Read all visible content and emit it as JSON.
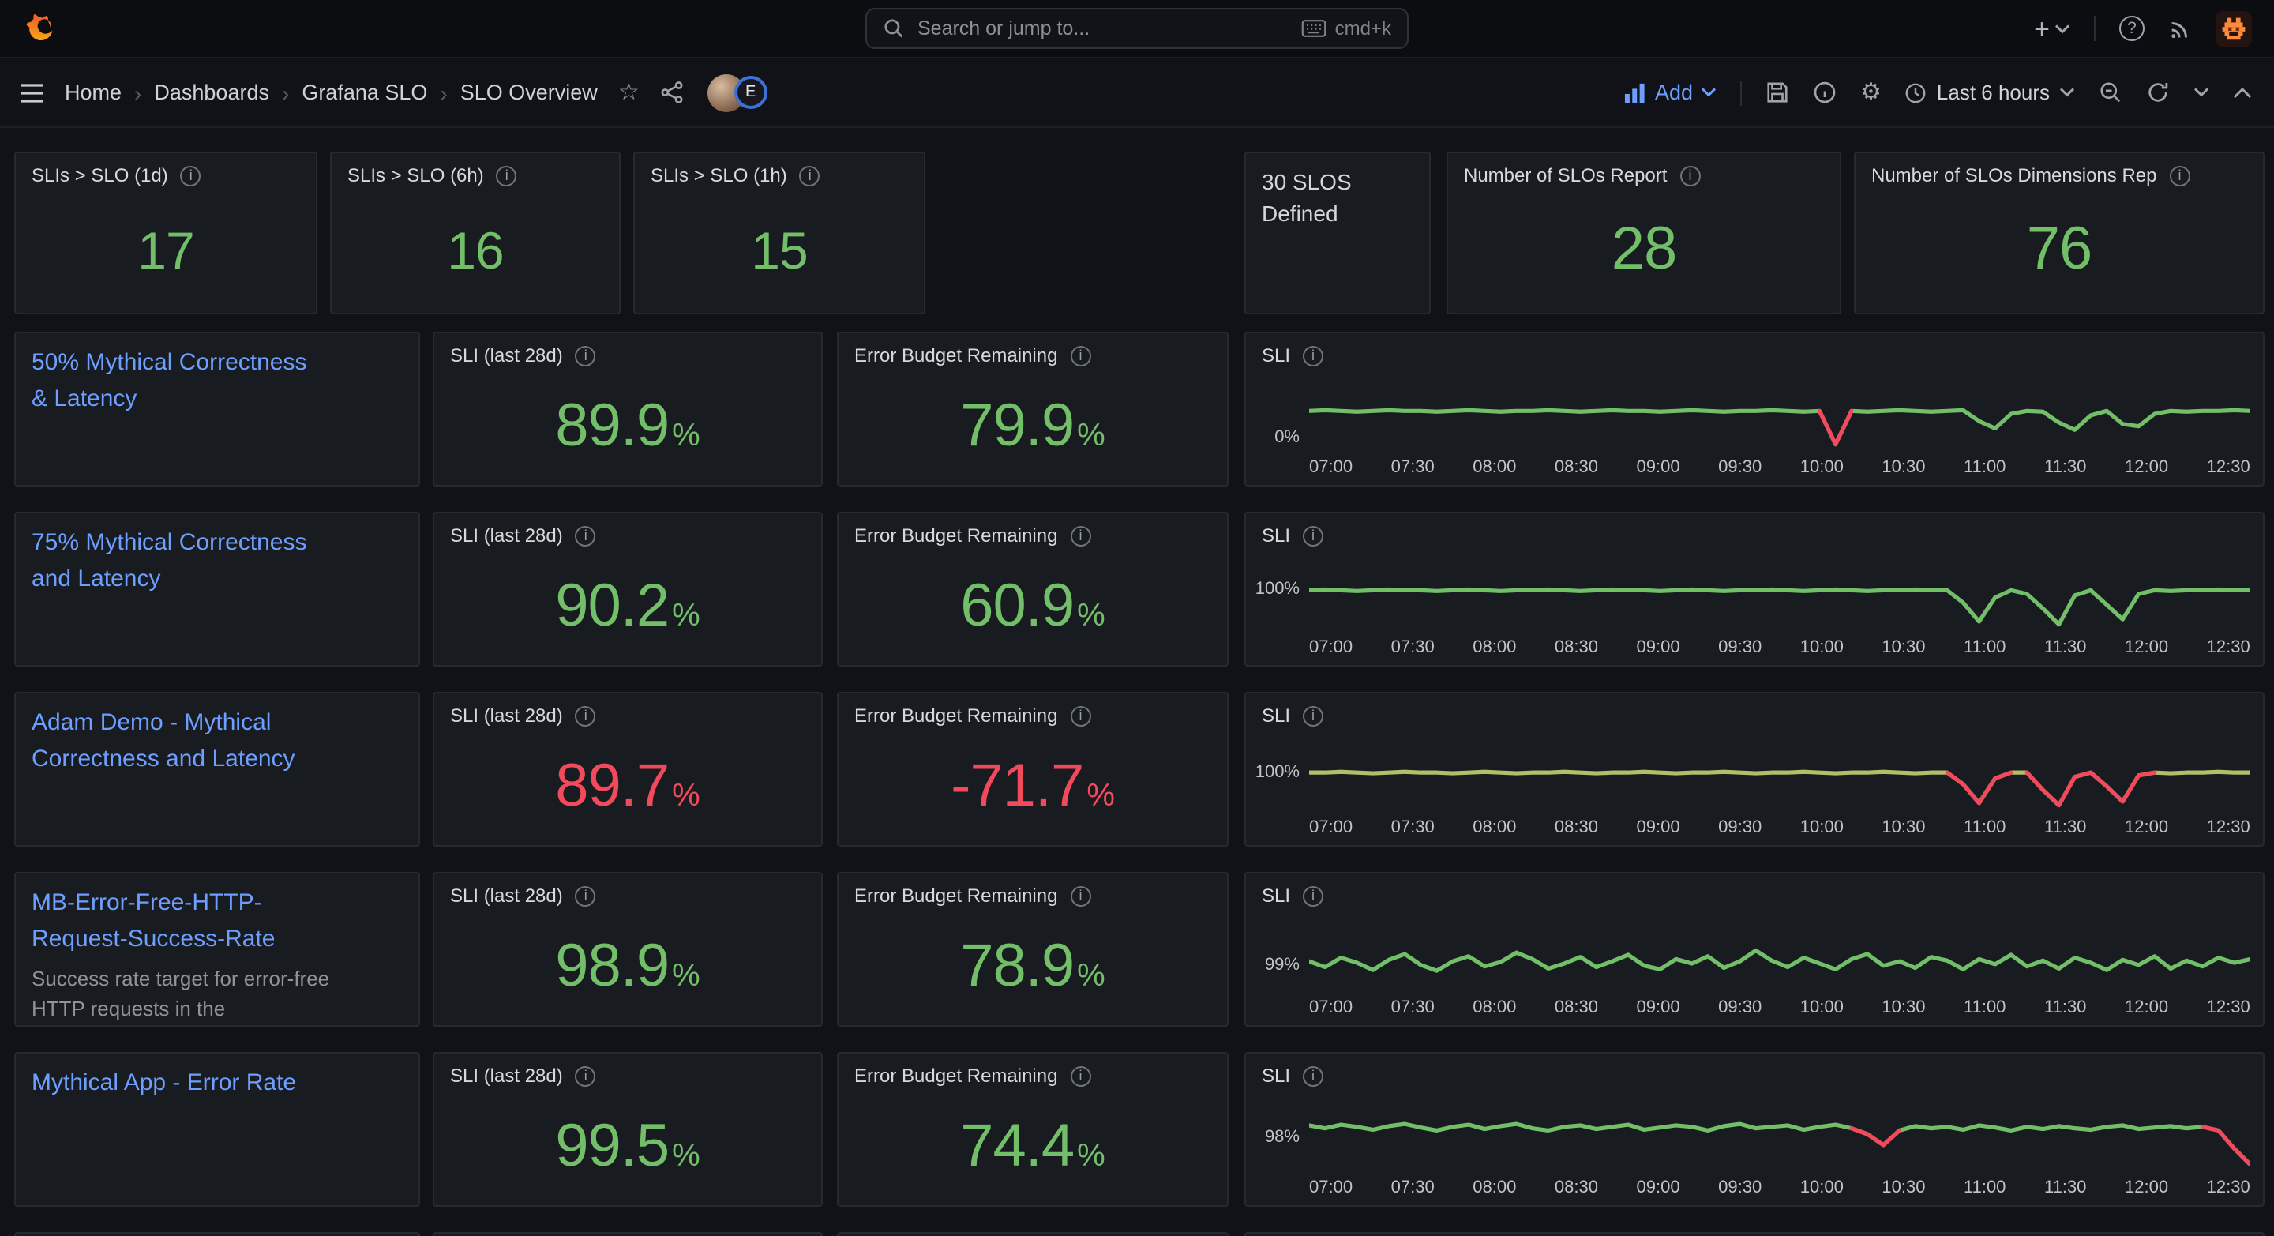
{
  "topnav": {
    "search": {
      "placeholder": "Search or jump to...",
      "shortcut": "cmd+k"
    }
  },
  "toolbar": {
    "breadcrumbs": [
      "Home",
      "Dashboards",
      "Grafana SLO",
      "SLO Overview"
    ],
    "avatar_badge": "E",
    "add_label": "Add",
    "time_range": "Last 6 hours"
  },
  "icons": {
    "info": "i",
    "star": "☆",
    "gear": "⚙",
    "plus": "+",
    "question": "?",
    "separator": "›"
  },
  "units": {
    "percent": "%"
  },
  "row1": {
    "stats": [
      {
        "title": "SLIs > SLO (1d)",
        "value": "17",
        "color": "#73bf69"
      },
      {
        "title": "SLIs > SLO (6h)",
        "value": "16",
        "color": "#73bf69"
      },
      {
        "title": "SLIs > SLO (1h)",
        "value": "15",
        "color": "#73bf69"
      }
    ],
    "text_panel": "30 SLOS Defined",
    "wide_stats": [
      {
        "title": "Number of SLOs Report",
        "value": "28",
        "color": "#73bf69"
      },
      {
        "title": "Number of SLOs Dimensions Rep",
        "value": "76",
        "color": "#73bf69"
      }
    ]
  },
  "chart_x_ticks": [
    "07:00",
    "07:30",
    "08:00",
    "08:30",
    "09:00",
    "09:30",
    "10:00",
    "10:30",
    "11:00",
    "11:30",
    "12:00",
    "12:30"
  ],
  "slo_rows": [
    {
      "name": "50% Mythical Correctness & Latency",
      "sli_title": "SLI (last 28d)",
      "sli_value": "89.9",
      "sli_color": "#73bf69",
      "ebr_title": "Error Budget Remaining",
      "ebr_value": "79.9",
      "ebr_color": "#73bf69",
      "chart_title": "SLI",
      "chart": {
        "type": "line",
        "y_label": "0%",
        "y_label_pos": 0.82,
        "color": "#73bf69",
        "red_color": "#f2495c",
        "values": [
          54,
          55,
          54,
          53,
          54,
          55,
          54,
          54,
          53,
          54,
          55,
          54,
          53,
          54,
          54,
          55,
          54,
          53,
          54,
          55,
          54,
          54,
          53,
          54,
          55,
          54,
          53,
          54,
          54,
          55,
          54,
          53,
          54,
          8,
          54,
          53,
          54,
          55,
          54,
          53,
          54,
          55,
          40,
          30,
          50,
          54,
          53,
          38,
          28,
          48,
          54,
          36,
          33,
          50,
          54,
          53,
          54,
          54,
          55,
          54
        ],
        "red_ranges": [
          [
            32,
            34
          ]
        ]
      }
    },
    {
      "name": "75% Mythical Correctness and Latency",
      "sli_title": "SLI (last 28d)",
      "sli_value": "90.2",
      "sli_color": "#73bf69",
      "ebr_title": "Error Budget Remaining",
      "ebr_value": "60.9",
      "ebr_color": "#73bf69",
      "chart_title": "SLI",
      "chart": {
        "type": "line",
        "y_label": "100%",
        "y_label_pos": 0.44,
        "color": "#73bf69",
        "red_color": "#f2495c",
        "values": [
          55,
          56,
          55,
          54,
          55,
          56,
          55,
          55,
          54,
          55,
          56,
          55,
          54,
          55,
          55,
          56,
          55,
          54,
          55,
          56,
          55,
          55,
          54,
          55,
          56,
          55,
          54,
          55,
          55,
          56,
          55,
          54,
          55,
          56,
          55,
          54,
          55,
          55,
          56,
          55,
          55,
          38,
          12,
          45,
          55,
          50,
          30,
          8,
          48,
          55,
          35,
          15,
          50,
          55,
          54,
          55,
          55,
          56,
          55,
          55
        ],
        "red_ranges": []
      }
    },
    {
      "name": "Adam Demo - Mythical Correctness and Latency",
      "sli_title": "SLI (last 28d)",
      "sli_value": "89.7",
      "sli_color": "#f2495c",
      "ebr_title": "Error Budget Remaining",
      "ebr_value": "-71.7",
      "ebr_color": "#f2495c",
      "chart_title": "SLI",
      "chart": {
        "type": "line",
        "y_label": "100%",
        "y_label_pos": 0.47,
        "color": "#b1bf69",
        "red_color": "#f2495c",
        "values": [
          52,
          52,
          53,
          52,
          51,
          52,
          53,
          52,
          52,
          51,
          52,
          53,
          52,
          51,
          52,
          52,
          53,
          52,
          51,
          52,
          52,
          53,
          52,
          51,
          52,
          52,
          53,
          52,
          51,
          52,
          52,
          53,
          52,
          51,
          52,
          52,
          53,
          52,
          51,
          52,
          52,
          36,
          10,
          44,
          52,
          52,
          28,
          7,
          46,
          52,
          33,
          12,
          48,
          52,
          51,
          52,
          52,
          53,
          52,
          52
        ],
        "red_ranges": [
          [
            40,
            44
          ],
          [
            45,
            49
          ],
          [
            49,
            53
          ]
        ]
      }
    },
    {
      "name": "MB-Error-Free-HTTP-Request-Success-Rate",
      "description": "Success rate target for error-free HTTP requests in the",
      "sli_title": "SLI (last 28d)",
      "sli_value": "98.9",
      "sli_color": "#73bf69",
      "ebr_title": "Error Budget Remaining",
      "ebr_value": "78.9",
      "ebr_color": "#73bf69",
      "chart_title": "SLI",
      "chart": {
        "type": "line",
        "y_label": "99%",
        "y_label_pos": 0.66,
        "color": "#73bf69",
        "red_color": "#f2495c",
        "values": [
          40,
          32,
          45,
          38,
          28,
          42,
          50,
          35,
          27,
          40,
          47,
          33,
          39,
          52,
          43,
          30,
          37,
          46,
          32,
          40,
          49,
          34,
          29,
          43,
          37,
          47,
          31,
          40,
          55,
          41,
          32,
          45,
          37,
          29,
          43,
          50,
          34,
          40,
          31,
          46,
          41,
          29,
          43,
          36,
          49,
          33,
          41,
          30,
          45,
          38,
          28,
          42,
          35,
          47,
          30,
          41,
          33,
          45,
          38,
          43
        ],
        "red_ranges": []
      }
    },
    {
      "name": "Mythical App - Error Rate",
      "sli_title": "SLI (last 28d)",
      "sli_value": "99.5",
      "sli_color": "#73bf69",
      "ebr_title": "Error Budget Remaining",
      "ebr_value": "74.4",
      "ebr_color": "#73bf69",
      "chart_title": "SLI",
      "chart": {
        "type": "line",
        "y_label": "98%",
        "y_label_pos": 0.55,
        "color": "#73bf69",
        "red_color": "#f2495c",
        "values": [
          62,
          58,
          63,
          60,
          56,
          61,
          64,
          59,
          55,
          60,
          63,
          57,
          61,
          64,
          58,
          55,
          60,
          62,
          57,
          60,
          63,
          56,
          59,
          62,
          60,
          55,
          61,
          64,
          58,
          60,
          62,
          56,
          60,
          63,
          58,
          50,
          35,
          55,
          61,
          58,
          60,
          56,
          62,
          59,
          55,
          60,
          57,
          61,
          58,
          56,
          60,
          62,
          57,
          59,
          61,
          58,
          60,
          55,
          30,
          8
        ],
        "red_ranges": [
          [
            34,
            37
          ],
          [
            56,
            59
          ]
        ]
      }
    }
  ]
}
